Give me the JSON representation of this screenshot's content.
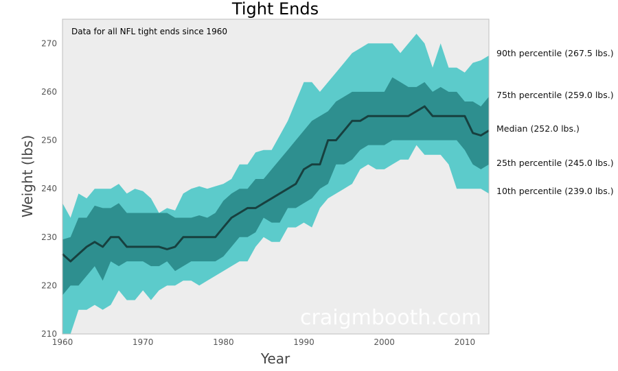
{
  "chart_data": {
    "type": "area",
    "title": "Tight Ends",
    "xlabel": "Year",
    "ylabel": "Weight (lbs)",
    "xlim": [
      1960,
      2013
    ],
    "ylim": [
      210,
      275
    ],
    "xticks": [
      1960,
      1970,
      1980,
      1990,
      2000,
      2010
    ],
    "yticks": [
      210,
      220,
      230,
      240,
      250,
      260,
      270
    ],
    "annotation": "Data for all NFL tight ends since 1960",
    "watermark": "craigmbooth.com",
    "grid": false,
    "colors": {
      "outer_band": "#5ccbcb",
      "inner_band": "#2e8f8f",
      "median_line": "#17403f",
      "background": "#ededed"
    },
    "x": [
      1960,
      1961,
      1962,
      1963,
      1964,
      1965,
      1966,
      1967,
      1968,
      1969,
      1970,
      1971,
      1972,
      1973,
      1974,
      1975,
      1976,
      1977,
      1978,
      1979,
      1980,
      1981,
      1982,
      1983,
      1984,
      1985,
      1986,
      1987,
      1988,
      1989,
      1990,
      1991,
      1992,
      1993,
      1994,
      1995,
      1996,
      1997,
      1998,
      1999,
      2000,
      2001,
      2002,
      2003,
      2004,
      2005,
      2006,
      2007,
      2008,
      2009,
      2010,
      2011,
      2012,
      2013
    ],
    "series": [
      {
        "name": "10th percentile",
        "label": "10th percentile (239.0 lbs.)",
        "values": [
          210,
          210,
          215,
          215,
          216,
          215,
          216,
          219,
          217,
          217,
          219,
          217,
          219,
          220,
          220,
          221,
          221,
          220,
          221,
          222,
          223,
          224,
          225,
          225,
          228,
          230,
          229,
          229,
          232,
          232,
          233,
          232,
          236,
          238,
          239,
          240,
          241,
          244,
          245,
          244,
          244,
          245,
          246,
          246,
          249,
          247,
          247,
          247,
          245,
          240,
          240,
          240,
          240,
          239
        ]
      },
      {
        "name": "25th percentile",
        "label": "25th percentile (245.0 lbs.)",
        "values": [
          218,
          220,
          220,
          222,
          224,
          221,
          225,
          224,
          225,
          225,
          225,
          224,
          224,
          225,
          223,
          224,
          225,
          225,
          225,
          225,
          226,
          228,
          230,
          230,
          231,
          234,
          233,
          233,
          236,
          236,
          237,
          238,
          240,
          241,
          245,
          245,
          246,
          248,
          249,
          249,
          249,
          250,
          250,
          250,
          250,
          250,
          250,
          250,
          250,
          250,
          248,
          245,
          244,
          245
        ]
      },
      {
        "name": "Median",
        "label": "Median (252.0 lbs.)",
        "values": [
          226.5,
          225,
          226.5,
          228,
          229,
          228,
          230,
          230,
          228,
          228,
          228,
          228,
          228,
          227.5,
          228,
          230,
          230,
          230,
          230,
          230,
          232,
          234,
          235,
          236,
          236,
          237,
          238,
          239,
          240,
          241,
          244,
          245,
          245,
          250,
          250,
          252,
          254,
          254,
          255,
          255,
          255,
          255,
          255,
          255,
          256,
          257,
          255,
          255,
          255,
          255,
          255,
          251.5,
          251,
          252
        ]
      },
      {
        "name": "75th percentile",
        "label": "75th percentile (259.0 lbs.)",
        "values": [
          229.5,
          230,
          234,
          234,
          236.5,
          236,
          236,
          237,
          235,
          235,
          235,
          235,
          235,
          235,
          234,
          234,
          234,
          234.5,
          234,
          235,
          237.5,
          239,
          240,
          240,
          242,
          242,
          244,
          246,
          248,
          250,
          252,
          254,
          255,
          256,
          258,
          259,
          260,
          260,
          260,
          260,
          260,
          263,
          262,
          261,
          261,
          262,
          260,
          261,
          260,
          260,
          258,
          258,
          257,
          259
        ]
      },
      {
        "name": "90th percentile",
        "label": "90th percentile (267.5 lbs.)",
        "values": [
          237,
          234,
          239,
          238,
          240,
          240,
          240,
          241,
          239,
          240,
          239.5,
          238,
          235,
          236,
          235.5,
          239,
          240,
          240.5,
          240,
          240.5,
          241,
          242,
          245,
          245,
          247.5,
          248,
          248,
          251,
          254,
          258,
          262,
          262,
          260,
          262,
          264,
          266,
          268,
          269,
          270,
          270,
          270,
          270,
          268,
          270,
          272,
          270,
          265,
          270,
          265,
          265,
          264,
          266,
          266.5,
          267.5
        ]
      }
    ]
  }
}
